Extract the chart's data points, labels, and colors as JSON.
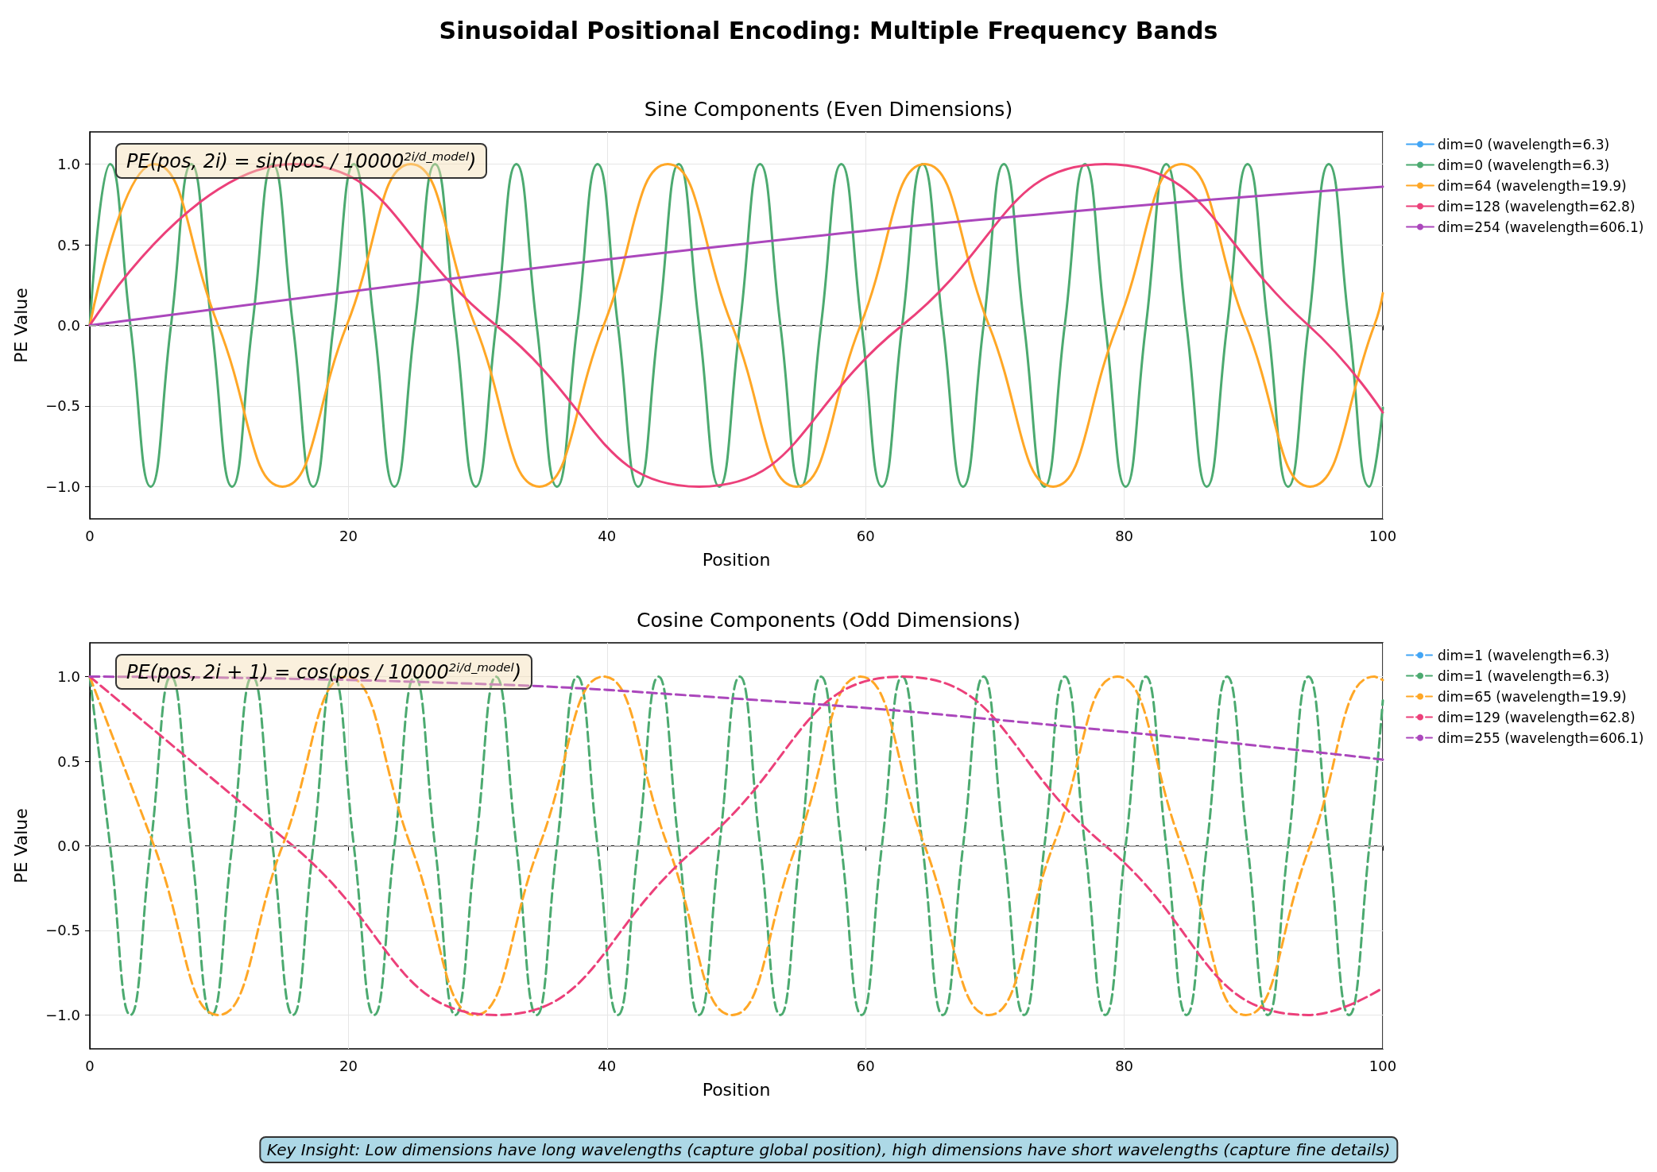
{
  "chart_data": [
    {
      "type": "line",
      "title": "Sinusoidal Positional Encoding: Multiple Frequency Bands",
      "subtitle": "Sine Components (Even Dimensions)",
      "xlabel": "Position",
      "ylabel": "PE Value",
      "xlim": [
        0,
        100
      ],
      "xticks": [
        0,
        20,
        40,
        60,
        80,
        100
      ],
      "ylim": [
        -1.2,
        1.2
      ],
      "yticks": [
        {
          "value": -1,
          "label": "−1.0"
        },
        {
          "value": -0.5,
          "label": "−0.5"
        },
        {
          "value": 0,
          "label": "0.0"
        },
        {
          "value": 0.5,
          "label": "0.5"
        },
        {
          "value": 1,
          "label": "1.0"
        }
      ],
      "grid": true,
      "legend": "top right",
      "marker": "none",
      "line_style": "solid",
      "ref_lines": [
        {
          "axis": "y",
          "value": 0,
          "label": null,
          "color": "#aaaaaa",
          "line_style": "dashed"
        }
      ],
      "annotations": [
        "PE(pos, 2i) = sin(pos / 10000$^{2i/d_model}$)"
      ],
      "series": [
        {
          "name": "dim=0 (wavelength=6.3)",
          "color": "#42a5f5"
        },
        {
          "name": "dim=0 (wavelength=6.3)",
          "color": "#4caa70",
          "x": [
            0,
            1.57,
            3.14,
            4.71,
            6.28,
            7.85,
            9.42,
            11.0,
            12.57,
            14.14,
            15.71,
            17.28,
            18.85,
            20.42,
            21.99,
            23.56,
            25.13,
            26.7,
            28.27,
            29.85,
            31.42,
            32.99,
            34.56,
            36.13,
            37.7,
            39.27,
            40.84,
            42.41,
            43.98,
            45.55,
            47.12,
            48.69,
            50.27,
            51.84,
            53.41,
            54.98,
            56.55,
            58.12,
            59.69,
            61.26,
            62.83,
            64.4,
            65.97,
            67.54,
            69.12,
            70.69,
            72.26,
            73.83,
            75.4,
            76.97,
            78.54,
            80.11,
            81.68,
            83.25,
            84.82,
            86.39,
            87.96,
            89.54,
            91.11,
            92.68,
            94.25,
            95.82,
            97.39,
            98.96,
            100
          ],
          "values": [
            0,
            1,
            0,
            -1,
            0,
            1,
            0,
            -1,
            0,
            1,
            0,
            -1,
            0,
            1,
            0,
            -1,
            0,
            1,
            0,
            -1,
            0,
            1,
            0,
            -1,
            0,
            1,
            0,
            -1,
            0,
            1,
            0,
            -1,
            0,
            1,
            0,
            -1,
            0,
            1,
            0,
            -1,
            0,
            1,
            0,
            -1,
            0,
            1,
            0,
            -1,
            0,
            1,
            0,
            -1,
            0,
            1,
            0,
            -1,
            0,
            1,
            0,
            -1,
            0,
            1,
            0,
            -1,
            -0.51
          ]
        },
        {
          "name": "dim=64 (wavelength=19.9)",
          "color": "#ffa726",
          "x": [
            0,
            4.97,
            9.93,
            14.9,
            19.87,
            24.83,
            29.8,
            34.77,
            39.74,
            44.7,
            49.67,
            54.64,
            59.6,
            64.57,
            69.54,
            74.5,
            79.47,
            84.44,
            89.41,
            94.37,
            99.34,
            100
          ],
          "values": [
            0,
            1,
            0,
            -1,
            0,
            1,
            0,
            -1,
            0,
            1,
            0,
            -1,
            0,
            1,
            0,
            -1,
            0,
            1,
            0,
            -1,
            0,
            0.2
          ]
        },
        {
          "name": "dim=128 (wavelength=62.8)",
          "color": "#ec407a",
          "x": [
            0,
            15.71,
            31.42,
            47.12,
            62.83,
            78.54,
            94.25,
            100
          ],
          "values": [
            0,
            1,
            0,
            -1,
            0,
            1,
            0,
            -0.54
          ]
        },
        {
          "name": "dim=254 (wavelength=606.1)",
          "color": "#ab47bc",
          "x": [
            0,
            25,
            50,
            75,
            100
          ],
          "values": [
            0,
            0.26,
            0.5,
            0.7,
            0.86
          ]
        }
      ]
    },
    {
      "type": "line",
      "title": "Cosine Components (Odd Dimensions)",
      "xlabel": "Position",
      "ylabel": "PE Value",
      "xlim": [
        0,
        100
      ],
      "xticks": [
        0,
        20,
        40,
        60,
        80,
        100
      ],
      "ylim": [
        -1.2,
        1.2
      ],
      "yticks": [
        {
          "value": -1,
          "label": "−1.0"
        },
        {
          "value": -0.5,
          "label": "−0.5"
        },
        {
          "value": 0,
          "label": "0.0"
        },
        {
          "value": 0.5,
          "label": "0.5"
        },
        {
          "value": 1,
          "label": "1.0"
        }
      ],
      "grid": true,
      "legend": "top right",
      "marker": "none",
      "line_style": "dashed",
      "ref_lines": [
        {
          "axis": "y",
          "value": 0,
          "label": null,
          "color": "#aaaaaa",
          "line_style": "dashed"
        }
      ],
      "annotations": [
        "PE(pos, 2i + 1) = cos(pos / 10000$^{2i/d_model}$)",
        "Key Insight: Low dimensions have long wavelengths (capture global position), high dimensions have short wavelengths (capture fine details)"
      ],
      "series": [
        {
          "name": "dim=1 (wavelength=6.3)",
          "color": "#42a5f5"
        },
        {
          "name": "dim=1 (wavelength=6.3)",
          "color": "#4caa70",
          "x": [
            0,
            1.57,
            3.14,
            4.71,
            6.28,
            7.85,
            9.42,
            11.0,
            12.57,
            14.14,
            15.71,
            17.28,
            18.85,
            20.42,
            21.99,
            23.56,
            25.13,
            26.7,
            28.27,
            29.85,
            31.42,
            32.99,
            34.56,
            36.13,
            37.7,
            39.27,
            40.84,
            42.41,
            43.98,
            45.55,
            47.12,
            48.69,
            50.27,
            51.84,
            53.41,
            54.98,
            56.55,
            58.12,
            59.69,
            61.26,
            62.83,
            64.4,
            65.97,
            67.54,
            69.12,
            70.69,
            72.26,
            73.83,
            75.4,
            76.97,
            78.54,
            80.11,
            81.68,
            83.25,
            84.82,
            86.39,
            87.96,
            89.54,
            91.11,
            92.68,
            94.25,
            95.82,
            97.39,
            98.96,
            100
          ],
          "values": [
            1,
            0,
            -1,
            0,
            1,
            0,
            -1,
            0,
            1,
            0,
            -1,
            0,
            1,
            0,
            -1,
            0,
            1,
            0,
            -1,
            0,
            1,
            0,
            -1,
            0,
            1,
            0,
            -1,
            0,
            1,
            0,
            -1,
            0,
            1,
            0,
            -1,
            0,
            1,
            0,
            -1,
            0,
            1,
            0,
            -1,
            0,
            1,
            0,
            -1,
            0,
            1,
            0,
            -1,
            0,
            1,
            0,
            -1,
            0,
            1,
            0,
            -1,
            0,
            1,
            0,
            -1,
            0,
            0.86
          ]
        },
        {
          "name": "dim=65 (wavelength=19.9)",
          "color": "#ffa726",
          "x": [
            0,
            4.97,
            9.93,
            14.9,
            19.87,
            24.83,
            29.8,
            34.77,
            39.74,
            44.7,
            49.67,
            54.64,
            59.6,
            64.57,
            69.54,
            74.5,
            79.47,
            84.44,
            89.41,
            94.37,
            99.34,
            100
          ],
          "values": [
            1,
            0,
            -1,
            0,
            1,
            0,
            -1,
            0,
            1,
            0,
            -1,
            0,
            1,
            0,
            -1,
            0,
            1,
            0,
            -1,
            0,
            1,
            0.98
          ]
        },
        {
          "name": "dim=129 (wavelength=62.8)",
          "color": "#ec407a",
          "x": [
            0,
            15.71,
            31.42,
            47.12,
            62.83,
            78.54,
            94.25,
            100
          ],
          "values": [
            1,
            0,
            -1,
            0,
            1,
            0,
            -1,
            -0.84
          ]
        },
        {
          "name": "dim=255 (wavelength=606.1)",
          "color": "#ab47bc",
          "x": [
            0,
            25,
            50,
            75,
            100
          ],
          "values": [
            1,
            0.97,
            0.87,
            0.71,
            0.51
          ]
        }
      ]
    }
  ]
}
